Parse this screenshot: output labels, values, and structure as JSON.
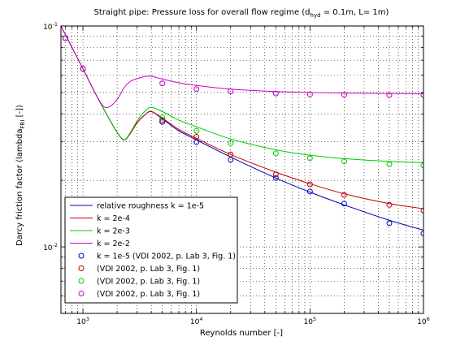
{
  "chart_data": {
    "type": "line",
    "title": {
      "main": "Straight pipe: Pressure loss for overall flow regime (d",
      "sub": "hyd",
      "rest": " = 0.1m, L= 1m)"
    },
    "xlabel": "Reynolds number [-]",
    "ylabel": {
      "main": "Darcy friction factor (lambda",
      "sub": "FRI",
      "rest": " [-])"
    },
    "x_scale": "log",
    "y_scale": "log",
    "xlim": [
      640,
      1000000
    ],
    "ylim": [
      0.005,
      0.1
    ],
    "grid": true,
    "x_major_ticks": [
      {
        "value": 1000,
        "base": "10",
        "exp": "3"
      },
      {
        "value": 10000,
        "base": "10",
        "exp": "4"
      },
      {
        "value": 100000,
        "base": "10",
        "exp": "5"
      },
      {
        "value": 1000000,
        "base": "10",
        "exp": "6"
      }
    ],
    "y_major_ticks": [
      {
        "value": 0.01,
        "base": "10",
        "exp": "-2"
      },
      {
        "value": 0.1,
        "base": "10",
        "exp": "-1"
      }
    ],
    "legend_position": "lower-left",
    "series": [
      {
        "name": "relative roughness k = 1e-5",
        "kind": "line",
        "color": "#0000c0",
        "x": [
          640,
          800,
          1000,
          1300,
          1700,
          2000,
          2300,
          2600,
          3000,
          3500,
          4000,
          5000,
          7000,
          10000,
          20000,
          50000,
          100000,
          200000,
          500000,
          1000000
        ],
        "y": [
          0.1,
          0.08,
          0.064,
          0.049,
          0.038,
          0.033,
          0.0305,
          0.0325,
          0.0365,
          0.0395,
          0.041,
          0.038,
          0.0335,
          0.0305,
          0.0255,
          0.0205,
          0.0177,
          0.0155,
          0.0132,
          0.0119
        ]
      },
      {
        "name": "k = 2e-4",
        "kind": "line",
        "color": "#c00000",
        "x": [
          640,
          800,
          1000,
          1300,
          1700,
          2000,
          2300,
          2600,
          3000,
          3500,
          4000,
          5000,
          7000,
          10000,
          20000,
          50000,
          100000,
          200000,
          500000,
          1000000
        ],
        "y": [
          0.1,
          0.08,
          0.064,
          0.049,
          0.038,
          0.033,
          0.0305,
          0.0325,
          0.0365,
          0.0395,
          0.041,
          0.0383,
          0.034,
          0.031,
          0.0262,
          0.0218,
          0.0193,
          0.0174,
          0.0157,
          0.0149
        ]
      },
      {
        "name": "k = 2e-3",
        "kind": "line",
        "color": "#00cc00",
        "x": [
          640,
          800,
          1000,
          1300,
          1700,
          2000,
          2300,
          2600,
          3000,
          3500,
          4000,
          5000,
          7000,
          10000,
          20000,
          50000,
          100000,
          200000,
          500000,
          1000000
        ],
        "y": [
          0.1,
          0.08,
          0.064,
          0.049,
          0.038,
          0.033,
          0.0305,
          0.0328,
          0.0372,
          0.041,
          0.0428,
          0.041,
          0.0375,
          0.035,
          0.0308,
          0.0275,
          0.026,
          0.0251,
          0.0244,
          0.0241
        ]
      },
      {
        "name": "k = 2e-2",
        "kind": "line",
        "color": "#cc00cc",
        "x": [
          640,
          800,
          1000,
          1300,
          1500,
          1700,
          2000,
          2300,
          2600,
          3000,
          3500,
          4000,
          5000,
          7000,
          10000,
          20000,
          50000,
          100000,
          200000,
          500000,
          1000000
        ],
        "y": [
          0.1,
          0.08,
          0.064,
          0.049,
          0.0435,
          0.043,
          0.0465,
          0.0525,
          0.056,
          0.0578,
          0.059,
          0.0592,
          0.0575,
          0.0553,
          0.0538,
          0.0518,
          0.0505,
          0.05,
          0.0497,
          0.0495,
          0.0494
        ]
      },
      {
        "name": "k = 1e-5 (VDI 2002, p. Lab 3, Fig. 1)",
        "kind": "markers",
        "color": "#0000c0",
        "x": [
          700,
          1000,
          5000,
          10000,
          20000,
          50000,
          100000,
          200000,
          500000,
          1000000
        ],
        "y": [
          0.088,
          0.064,
          0.0368,
          0.0298,
          0.0248,
          0.0205,
          0.0178,
          0.0157,
          0.0128,
          0.0115
        ]
      },
      {
        "name": "(VDI 2002, p. Lab 3, Fig. 1)",
        "kind": "markers",
        "color": "#c00000",
        "x": [
          700,
          1000,
          5000,
          10000,
          20000,
          50000,
          100000,
          200000,
          500000,
          1000000
        ],
        "y": [
          0.088,
          0.064,
          0.0375,
          0.0315,
          0.0262,
          0.0213,
          0.0192,
          0.0172,
          0.0155,
          0.0146
        ]
      },
      {
        "name": "(VDI 2002, p. Lab 3, Fig. 1)",
        "kind": "markers",
        "color": "#00cc00",
        "x": [
          700,
          1000,
          5000,
          10000,
          20000,
          50000,
          100000,
          200000,
          500000,
          1000000
        ],
        "y": [
          0.088,
          0.064,
          0.0385,
          0.0335,
          0.0295,
          0.0265,
          0.0252,
          0.0244,
          0.0237,
          0.0234
        ]
      },
      {
        "name": "(VDI 2002, p. Lab 3, Fig. 1)",
        "kind": "markers",
        "color": "#cc00cc",
        "x": [
          700,
          1000,
          5000,
          10000,
          20000,
          50000,
          100000,
          200000,
          500000,
          1000000
        ],
        "y": [
          0.088,
          0.064,
          0.055,
          0.0518,
          0.0506,
          0.0495,
          0.049,
          0.0488,
          0.0487,
          0.0487
        ]
      }
    ]
  }
}
